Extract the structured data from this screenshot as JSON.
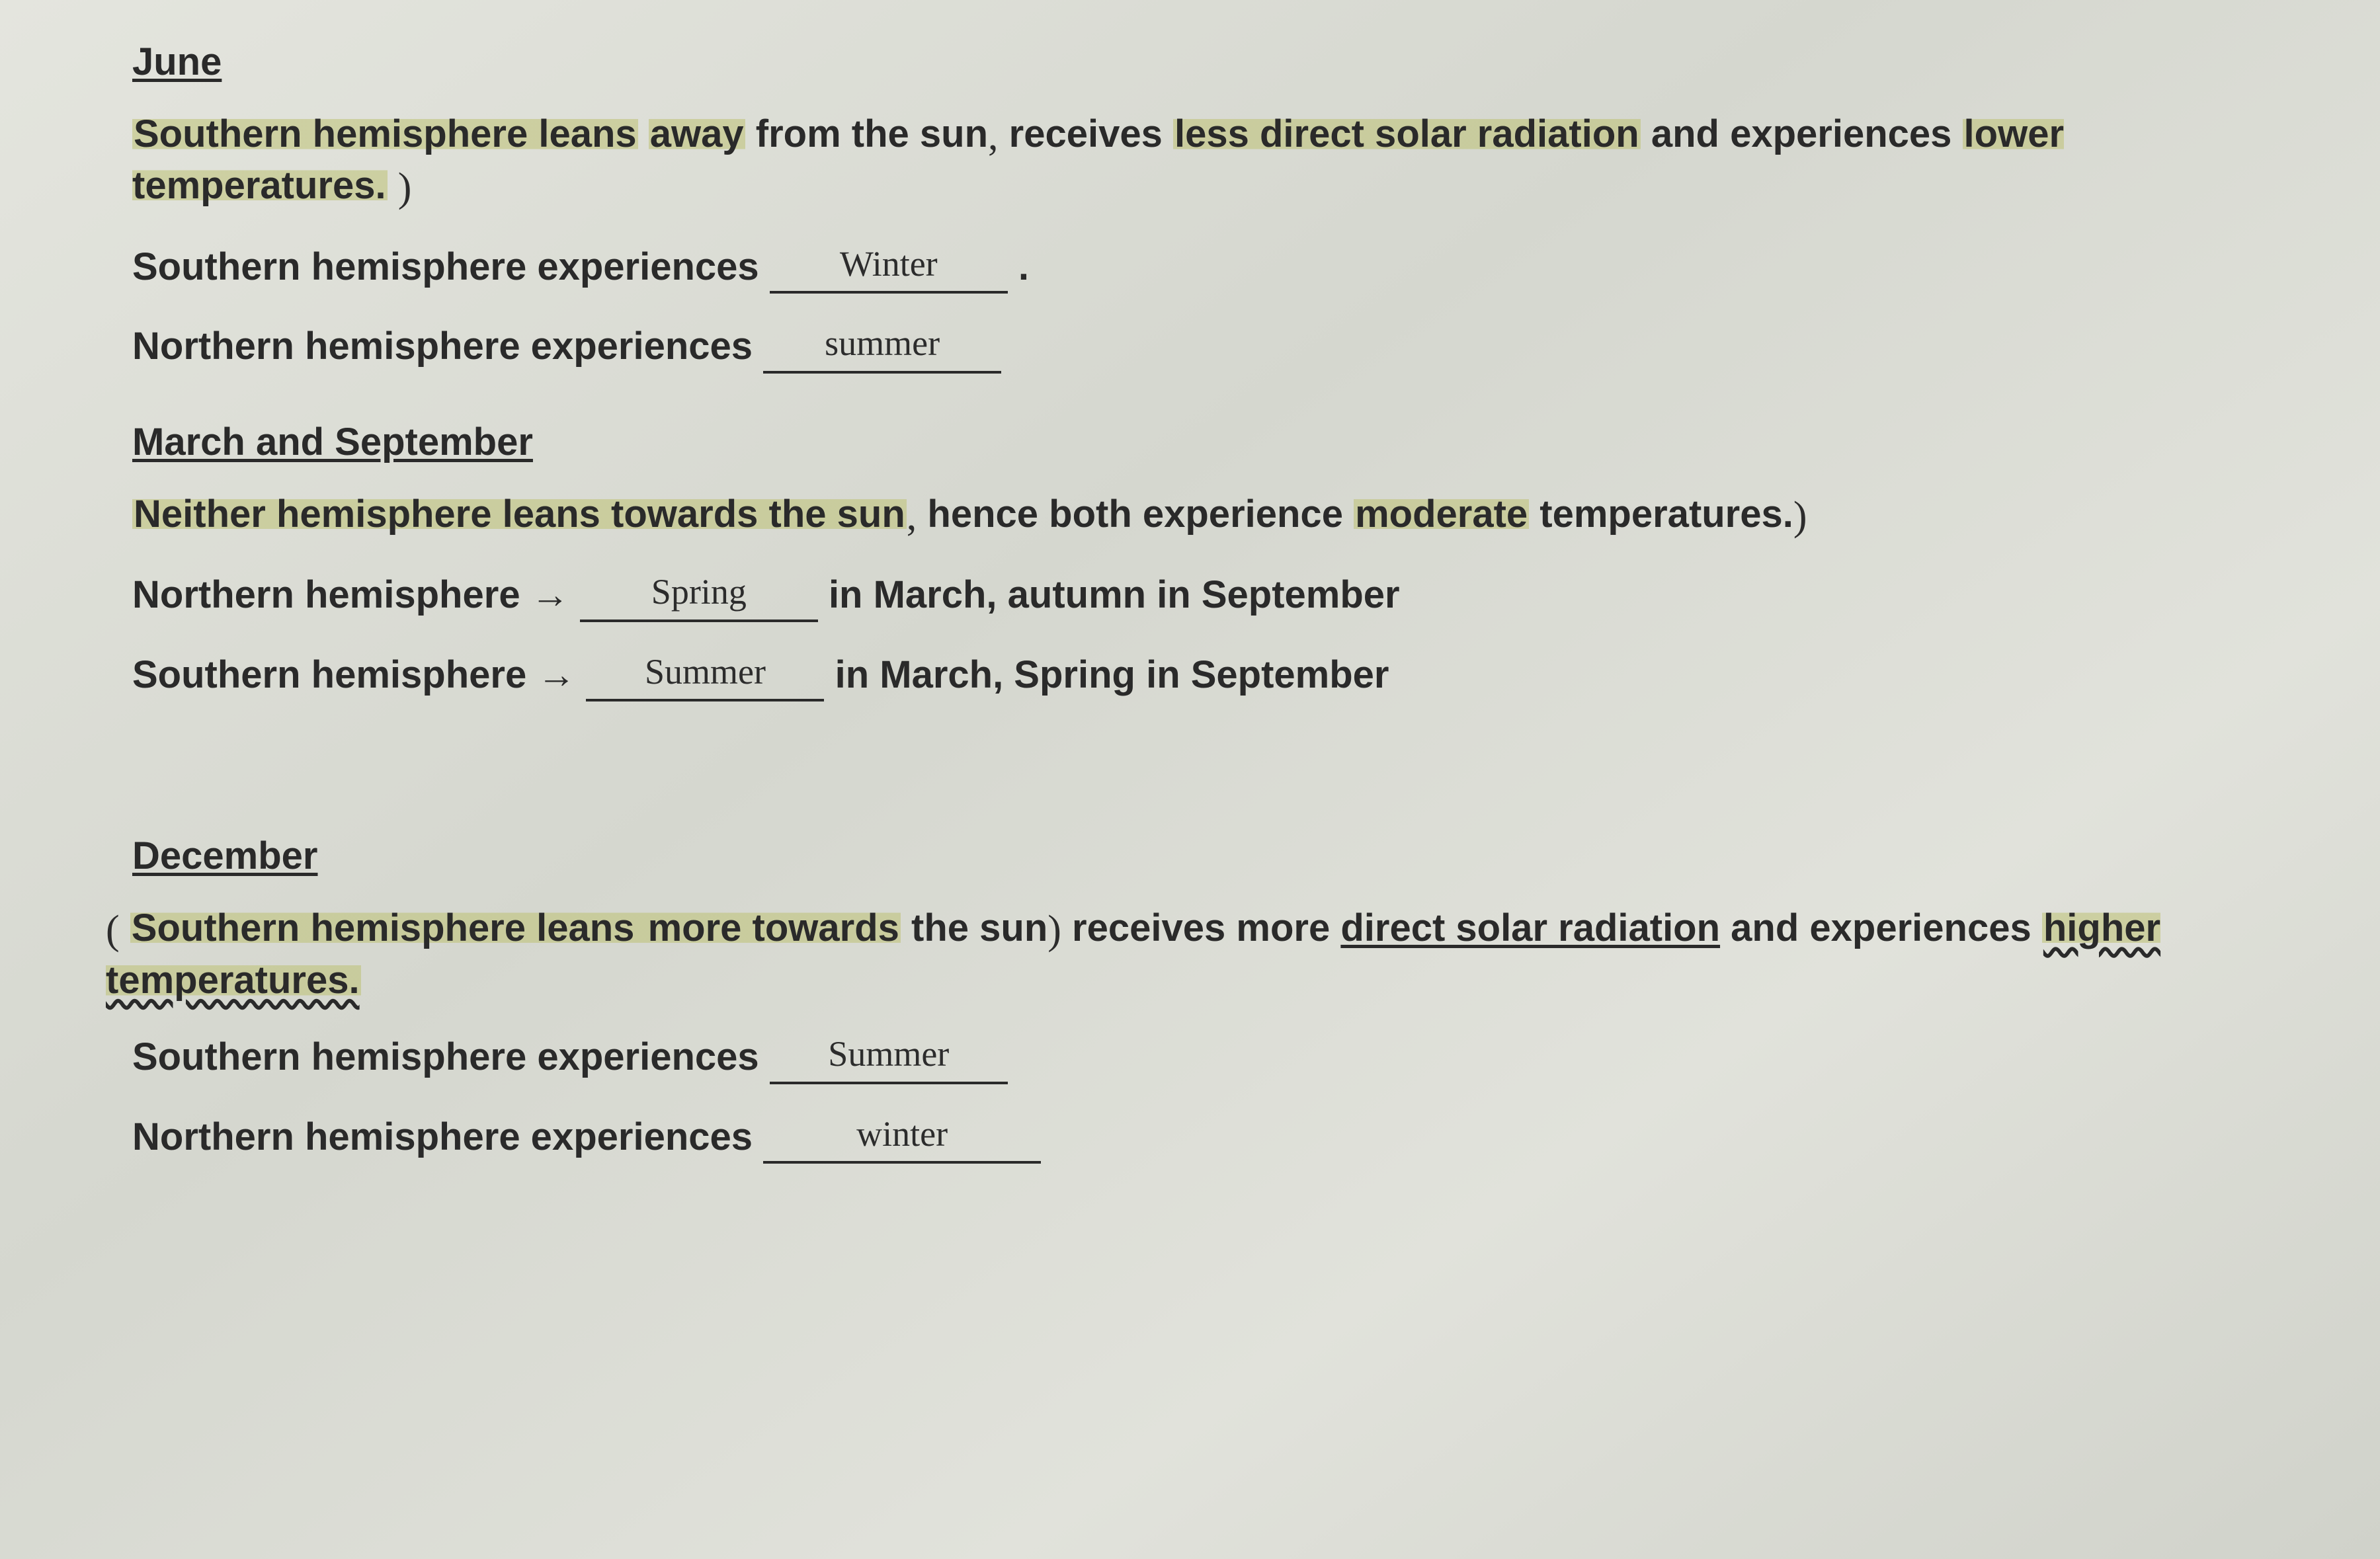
{
  "colors": {
    "paper_bg": "#d8dad3",
    "text": "#2a2a2a",
    "highlighter": "rgba(189,193,115,0.55)",
    "handwriting": "#2c2c2c"
  },
  "typography": {
    "printed_font": "Arial",
    "printed_weight": 700,
    "printed_size_pt": 44,
    "handwritten_font": "Comic Sans MS",
    "handwritten_size_pt": 40
  },
  "june": {
    "heading": "June",
    "para_part1": "Southern hemisphere leans",
    "para_hl1": "away",
    "para_part2": " from the sun",
    "paren1": ",",
    "para_part3": " receives ",
    "para_hl2": "less direct solar radiation",
    "para_part4": " and experiences ",
    "para_hl3": "lower temperatures.",
    "close_paren": ")",
    "southern_label": "Southern hemisphere experiences ",
    "southern_answer": "Winter",
    "southern_tail": " .",
    "northern_label": "Northern hemisphere experiences ",
    "northern_answer": "summer"
  },
  "march_sept": {
    "heading": "March and September",
    "para_part1": "Neither hemisphere leans towards the sun",
    "paren": ",",
    "para_part2": " hence both experience ",
    "para_hl1": "moderate",
    "para_part3": " temperatures.",
    "close_paren": ")",
    "northern_label": "Northern hemisphere ",
    "arrow": "→",
    "northern_answer": "Spring",
    "northern_tail": " in March, autumn in September",
    "southern_label": "Southern hemisphere ",
    "southern_answer": "Summer",
    "southern_tail": " in March, Spring in September"
  },
  "december": {
    "heading": "December",
    "open_paren": "(",
    "para_part1": "Southern hemisphere leans ",
    "para_hl1": "more towards",
    "para_part2": " the sun",
    "paren_close1": ")",
    "para_part3": " receives more ",
    "underline_phrase": "direct solar radiation",
    "para_part4": " and experiences ",
    "para_hl2": "higher temperatures.",
    "southern_label": "Southern hemisphere experiences ",
    "southern_answer": "Summer",
    "northern_label": "Northern hemisphere experiences ",
    "northern_answer": "winter"
  }
}
